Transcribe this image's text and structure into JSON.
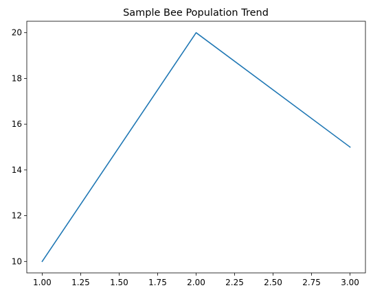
{
  "chart_data": {
    "type": "line",
    "title": "Sample Bee Population Trend",
    "xlabel": "",
    "ylabel": "",
    "x": [
      1,
      2,
      3
    ],
    "series": [
      {
        "values": [
          10,
          20,
          15
        ],
        "color": "#1f77b4"
      }
    ],
    "xlim": [
      0.9,
      3.1
    ],
    "ylim": [
      9.5,
      20.5
    ],
    "x_ticks": [
      "1.00",
      "1.25",
      "1.50",
      "1.75",
      "2.00",
      "2.25",
      "2.50",
      "2.75",
      "3.00"
    ],
    "y_ticks": [
      "10",
      "12",
      "14",
      "16",
      "18",
      "20"
    ],
    "grid": false,
    "legend": "none"
  }
}
